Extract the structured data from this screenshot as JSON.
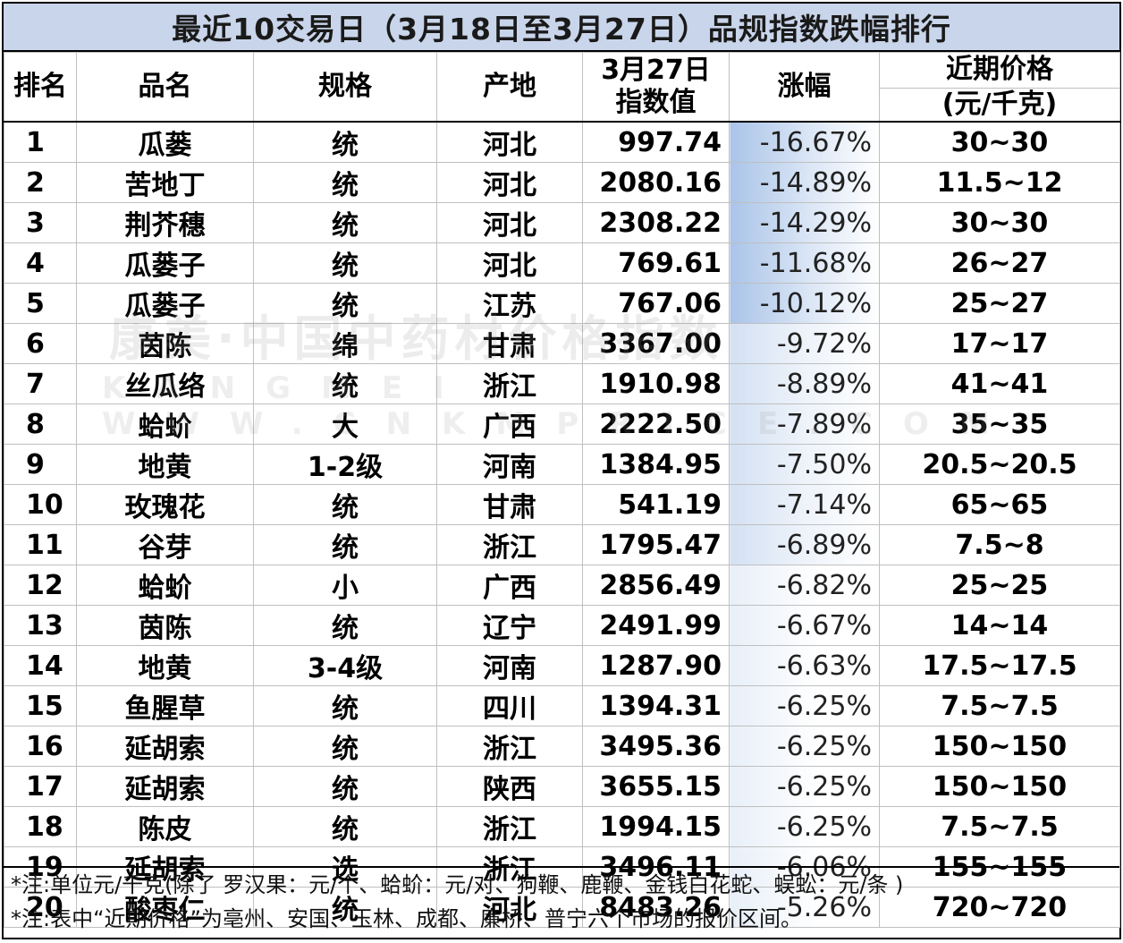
{
  "title": "最近10交易日（3月18日至3月27日）品规指数跌幅排行",
  "headers": {
    "rank": "排名",
    "name": "品名",
    "spec": "规格",
    "origin": "产地",
    "index_l1": "3月27日",
    "index_l2": "指数值",
    "change": "涨幅",
    "price_l1": "近期价格",
    "price_l2": "(元/千克)"
  },
  "rows": [
    {
      "rank": "1",
      "name": "瓜蒌",
      "spec": "统",
      "origin": "河北",
      "index": "997.74",
      "change": "-16.67%",
      "price": "30~30"
    },
    {
      "rank": "2",
      "name": "苦地丁",
      "spec": "统",
      "origin": "河北",
      "index": "2080.16",
      "change": "-14.89%",
      "price": "11.5~12"
    },
    {
      "rank": "3",
      "name": "荆芥穗",
      "spec": "统",
      "origin": "河北",
      "index": "2308.22",
      "change": "-14.29%",
      "price": "30~30"
    },
    {
      "rank": "4",
      "name": "瓜蒌子",
      "spec": "统",
      "origin": "河北",
      "index": "769.61",
      "change": "-11.68%",
      "price": "26~27"
    },
    {
      "rank": "5",
      "name": "瓜蒌子",
      "spec": "统",
      "origin": "江苏",
      "index": "767.06",
      "change": "-10.12%",
      "price": "25~27"
    },
    {
      "rank": "6",
      "name": "茵陈",
      "spec": "绵",
      "origin": "甘肃",
      "index": "3367.00",
      "change": "-9.72%",
      "price": "17~17"
    },
    {
      "rank": "7",
      "name": "丝瓜络",
      "spec": "统",
      "origin": "浙江",
      "index": "1910.98",
      "change": "-8.89%",
      "price": "41~41"
    },
    {
      "rank": "8",
      "name": "蛤蚧",
      "spec": "大",
      "origin": "广西",
      "index": "2222.50",
      "change": "-7.89%",
      "price": "35~35"
    },
    {
      "rank": "9",
      "name": "地黄",
      "spec": "1-2级",
      "origin": "河南",
      "index": "1384.95",
      "change": "-7.50%",
      "price": "20.5~20.5"
    },
    {
      "rank": "10",
      "name": "玫瑰花",
      "spec": "统",
      "origin": "甘肃",
      "index": "541.19",
      "change": "-7.14%",
      "price": "65~65"
    },
    {
      "rank": "11",
      "name": "谷芽",
      "spec": "统",
      "origin": "浙江",
      "index": "1795.47",
      "change": "-6.89%",
      "price": "7.5~8"
    },
    {
      "rank": "12",
      "name": "蛤蚧",
      "spec": "小",
      "origin": "广西",
      "index": "2856.49",
      "change": "-6.82%",
      "price": "25~25"
    },
    {
      "rank": "13",
      "name": "茵陈",
      "spec": "统",
      "origin": "辽宁",
      "index": "2491.99",
      "change": "-6.67%",
      "price": "14~14"
    },
    {
      "rank": "14",
      "name": "地黄",
      "spec": "3-4级",
      "origin": "河南",
      "index": "1287.90",
      "change": "-6.63%",
      "price": "17.5~17.5"
    },
    {
      "rank": "15",
      "name": "鱼腥草",
      "spec": "统",
      "origin": "四川",
      "index": "1394.31",
      "change": "-6.25%",
      "price": "7.5~7.5"
    },
    {
      "rank": "16",
      "name": "延胡索",
      "spec": "统",
      "origin": "浙江",
      "index": "3495.36",
      "change": "-6.25%",
      "price": "150~150"
    },
    {
      "rank": "17",
      "name": "延胡索",
      "spec": "统",
      "origin": "陕西",
      "index": "3655.15",
      "change": "-6.25%",
      "price": "150~150"
    },
    {
      "rank": "18",
      "name": "陈皮",
      "spec": "统",
      "origin": "浙江",
      "index": "1994.15",
      "change": "-6.25%",
      "price": "7.5~7.5"
    },
    {
      "rank": "19",
      "name": "延胡索",
      "spec": "选",
      "origin": "浙江",
      "index": "3496.11",
      "change": "-6.06%",
      "price": "155~155"
    },
    {
      "rank": "20",
      "name": "酸枣仁",
      "spec": "统",
      "origin": "河北",
      "index": "8483.26",
      "change": "-5.26%",
      "price": "720~720"
    }
  ],
  "notes": [
    "*注:单位元/千克(除了 罗汉果：元/个、蛤蚧：元/对、狗鞭、鹿鞭、金钱白花蛇、蜈蚣：元/条 )",
    "*注:表中“近期价格”为亳州、安国、玉林、成都、廉桥、普宁六个市场的报价区间。"
  ],
  "watermark": {
    "line1": "康美·中国中药材价格指数",
    "line2": "KANGMEI WWW.CNKMPRICE.COM"
  }
}
